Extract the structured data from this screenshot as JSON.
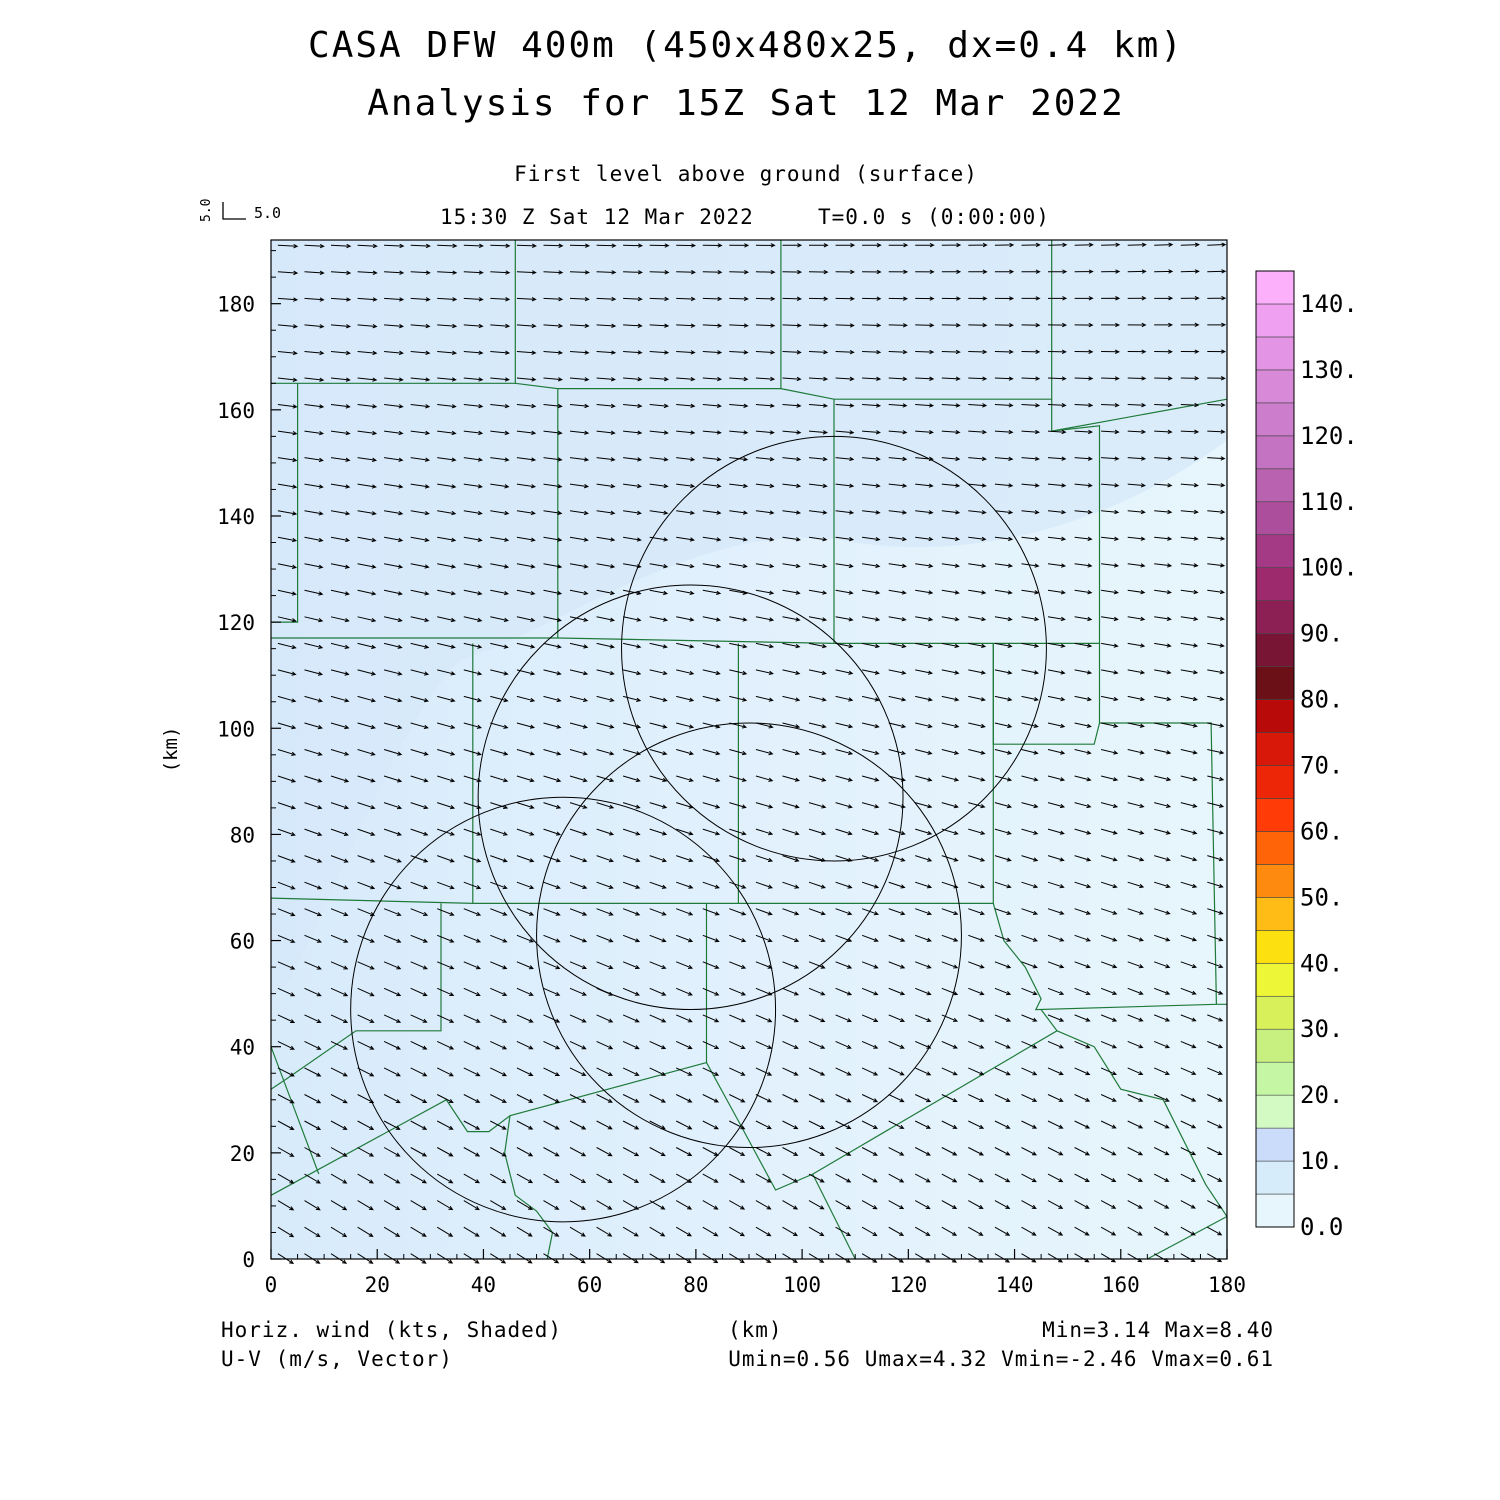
{
  "header": {
    "title_line1": "CASA DFW 400m (450x480x25, dx=0.4 km)",
    "title_line2": "Analysis for 15Z Sat 12 Mar 2022",
    "level": "First level above ground (surface)",
    "valid_time": "15:30 Z Sat 12 Mar 2022",
    "model_time": "T=0.0 s (0:00:00)",
    "ref_vector_u": "5.0",
    "ref_vector_v": "5.0"
  },
  "footer": {
    "field_label": "Horiz. wind (kts, Shaded)",
    "vector_label": "U-V (m/s, Vector)",
    "xunit": "(km)",
    "minmax": "Min=3.14 Max=8.40",
    "uv_minmax": "Umin=0.56 Umax=4.32 Vmin=-2.46 Vmax=0.61"
  },
  "chart_data": {
    "type": "heatmap",
    "xlabel": "(km)",
    "ylabel": "(km)",
    "xlim": [
      0,
      180
    ],
    "ylim": [
      0,
      192
    ],
    "xticks": [
      0,
      20,
      40,
      60,
      80,
      100,
      120,
      140,
      160,
      180
    ],
    "yticks": [
      0,
      20,
      40,
      60,
      80,
      100,
      120,
      140,
      160,
      180
    ],
    "field": "Horiz. wind (kts, Shaded)",
    "field_min": 3.14,
    "field_max": 8.4,
    "vectors": {
      "name": "U-V (m/s, Vector)",
      "umin": 0.56,
      "umax": 4.32,
      "vmin": -2.46,
      "vmax": 0.61,
      "grid_spacing_km": 5
    },
    "colorbar": {
      "labels": [
        "0.0",
        "10.",
        "20.",
        "30.",
        "40.",
        "50.",
        "60.",
        "70.",
        "80.",
        "90.",
        "100.",
        "110.",
        "120.",
        "130.",
        "140."
      ],
      "levels": [
        0,
        5,
        10,
        15,
        20,
        25,
        30,
        35,
        40,
        45,
        50,
        55,
        60,
        65,
        70,
        75,
        80,
        85,
        90,
        95,
        100,
        105,
        110,
        115,
        120,
        125,
        130,
        135,
        140,
        145
      ],
      "colors": [
        "#e6f6fc",
        "#d6ecfb",
        "#cbdcfb",
        "#d4fac4",
        "#c4f6a4",
        "#c8f080",
        "#d8f05a",
        "#eef638",
        "#fce010",
        "#ffbc16",
        "#ff8a10",
        "#ff6408",
        "#ff3c08",
        "#ee2608",
        "#d81808",
        "#b80a08",
        "#6c1018",
        "#781434",
        "#8c2054",
        "#9c2a6c",
        "#a43a86",
        "#ac4e9c",
        "#b862b0",
        "#c472c2",
        "#cc7ecc",
        "#d88ad8",
        "#e494e4",
        "#f0a0f0",
        "#fcb0fc"
      ]
    },
    "range_rings": [
      {
        "center_km": [
          55,
          47
        ],
        "radius_km": 40
      },
      {
        "center_km": [
          79,
          87
        ],
        "radius_km": 40
      },
      {
        "center_km": [
          90,
          61
        ],
        "radius_km": 40
      },
      {
        "center_km": [
          106,
          115
        ],
        "radius_km": 40
      }
    ],
    "boundaries": [
      [
        [
          0,
          165
        ],
        [
          46,
          165
        ],
        [
          46,
          192
        ]
      ],
      [
        [
          46,
          165
        ],
        [
          54,
          164
        ],
        [
          54,
          117
        ],
        [
          0,
          117
        ]
      ],
      [
        [
          5,
          165
        ],
        [
          5,
          120
        ],
        [
          0,
          120
        ]
      ],
      [
        [
          54,
          164
        ],
        [
          96,
          164
        ],
        [
          96,
          192
        ]
      ],
      [
        [
          96,
          164
        ],
        [
          106,
          162
        ],
        [
          147,
          162
        ],
        [
          147,
          192
        ]
      ],
      [
        [
          106,
          162
        ],
        [
          106,
          116
        ],
        [
          54,
          117
        ]
      ],
      [
        [
          147,
          162
        ],
        [
          147,
          156
        ],
        [
          156,
          157
        ],
        [
          156,
          116
        ],
        [
          106,
          116
        ]
      ],
      [
        [
          147,
          156
        ],
        [
          180,
          162
        ]
      ],
      [
        [
          38,
          116
        ],
        [
          38,
          67
        ],
        [
          0,
          68
        ]
      ],
      [
        [
          88,
          116
        ],
        [
          88,
          67
        ],
        [
          38,
          67
        ]
      ],
      [
        [
          88,
          67
        ],
        [
          136,
          67
        ],
        [
          136,
          116
        ]
      ],
      [
        [
          136,
          116
        ],
        [
          136,
          97
        ],
        [
          155,
          97
        ],
        [
          156,
          101
        ],
        [
          156,
          116
        ]
      ],
      [
        [
          156,
          101
        ],
        [
          177,
          101
        ],
        [
          178,
          48
        ],
        [
          180,
          48
        ]
      ],
      [
        [
          136,
          67
        ],
        [
          138,
          60
        ],
        [
          142,
          55
        ],
        [
          145,
          49
        ],
        [
          144,
          47
        ],
        [
          178,
          48
        ]
      ],
      [
        [
          32,
          67
        ],
        [
          32,
          43
        ],
        [
          16,
          43
        ],
        [
          3,
          34
        ],
        [
          0,
          32
        ]
      ],
      [
        [
          0,
          40
        ],
        [
          9,
          16
        ]
      ],
      [
        [
          0,
          12
        ],
        [
          33,
          30
        ],
        [
          37,
          24
        ],
        [
          41,
          24
        ],
        [
          45,
          27
        ],
        [
          82,
          37
        ],
        [
          82,
          67
        ]
      ],
      [
        [
          82,
          37
        ],
        [
          88,
          26
        ],
        [
          95,
          13
        ],
        [
          102,
          16
        ],
        [
          110,
          0
        ]
      ],
      [
        [
          102,
          16
        ],
        [
          148,
          43
        ],
        [
          145,
          47
        ]
      ],
      [
        [
          148,
          43
        ],
        [
          155,
          40
        ],
        [
          160,
          32
        ],
        [
          168,
          30
        ],
        [
          172,
          22
        ],
        [
          176,
          14
        ],
        [
          180,
          8
        ],
        [
          180,
          0
        ]
      ],
      [
        [
          45,
          27
        ],
        [
          44,
          20
        ],
        [
          46,
          12
        ],
        [
          50,
          9
        ],
        [
          53,
          5
        ],
        [
          52,
          0
        ]
      ],
      [
        [
          165,
          0
        ],
        [
          180,
          8
        ]
      ]
    ]
  }
}
